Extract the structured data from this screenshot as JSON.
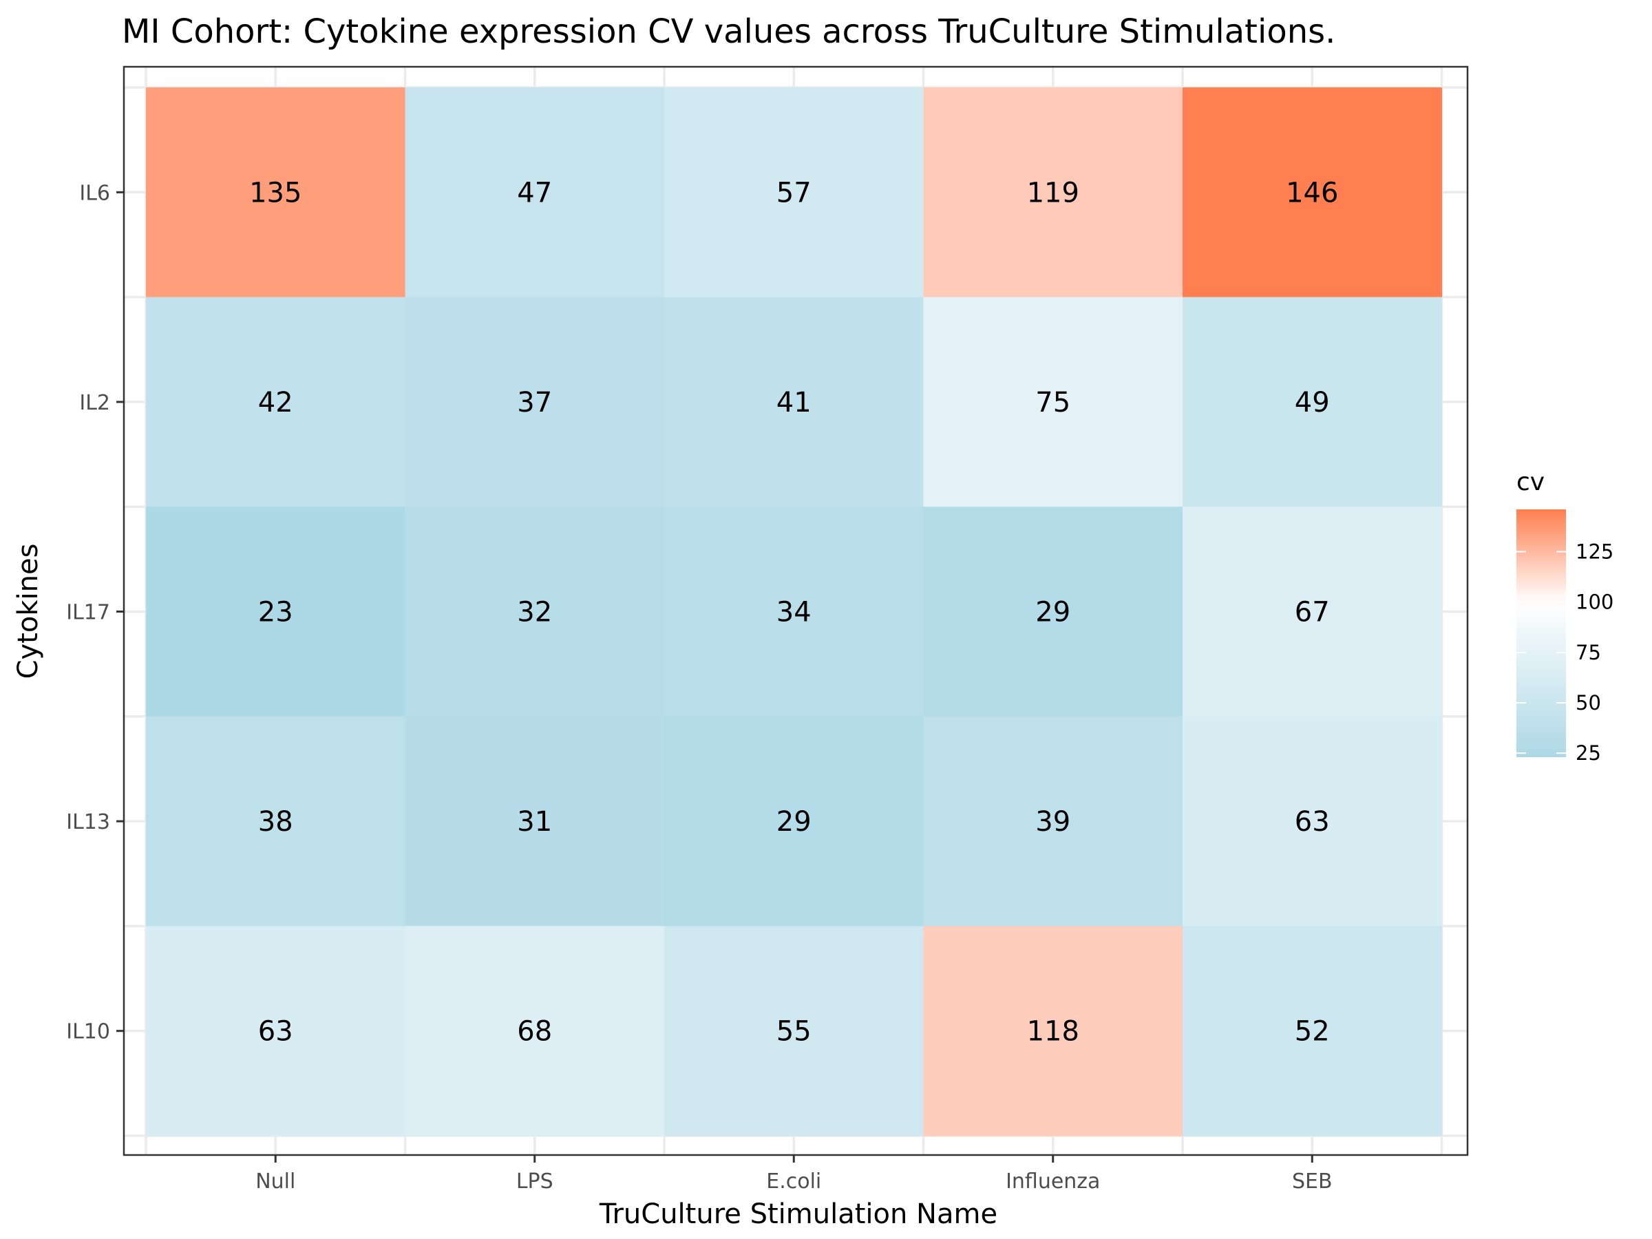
{
  "chart_data": {
    "type": "heatmap",
    "title": "MI Cohort: Cytokine expression CV values across TruCulture Stimulations.",
    "xlabel": "TruCulture Stimulation Name",
    "ylabel": "Cytokines",
    "x_categories": [
      "Null",
      "LPS",
      "E.coli",
      "Influenza",
      "SEB"
    ],
    "y_categories": [
      "IL6",
      "IL2",
      "IL17",
      "IL13",
      "IL10"
    ],
    "values": [
      [
        135,
        47,
        57,
        119,
        146
      ],
      [
        42,
        37,
        41,
        75,
        49
      ],
      [
        23,
        32,
        34,
        29,
        67
      ],
      [
        38,
        31,
        29,
        39,
        63
      ],
      [
        63,
        68,
        55,
        118,
        52
      ]
    ],
    "legend": {
      "title": "cv",
      "ticks": [
        25,
        50,
        75,
        100,
        125
      ],
      "range": [
        23,
        146
      ],
      "midpoint": 100,
      "low_color": "#add8e6",
      "mid_color": "#ffffff",
      "high_color": "#ff7f50",
      "position": "right"
    },
    "grid": true,
    "panel_border": true
  }
}
